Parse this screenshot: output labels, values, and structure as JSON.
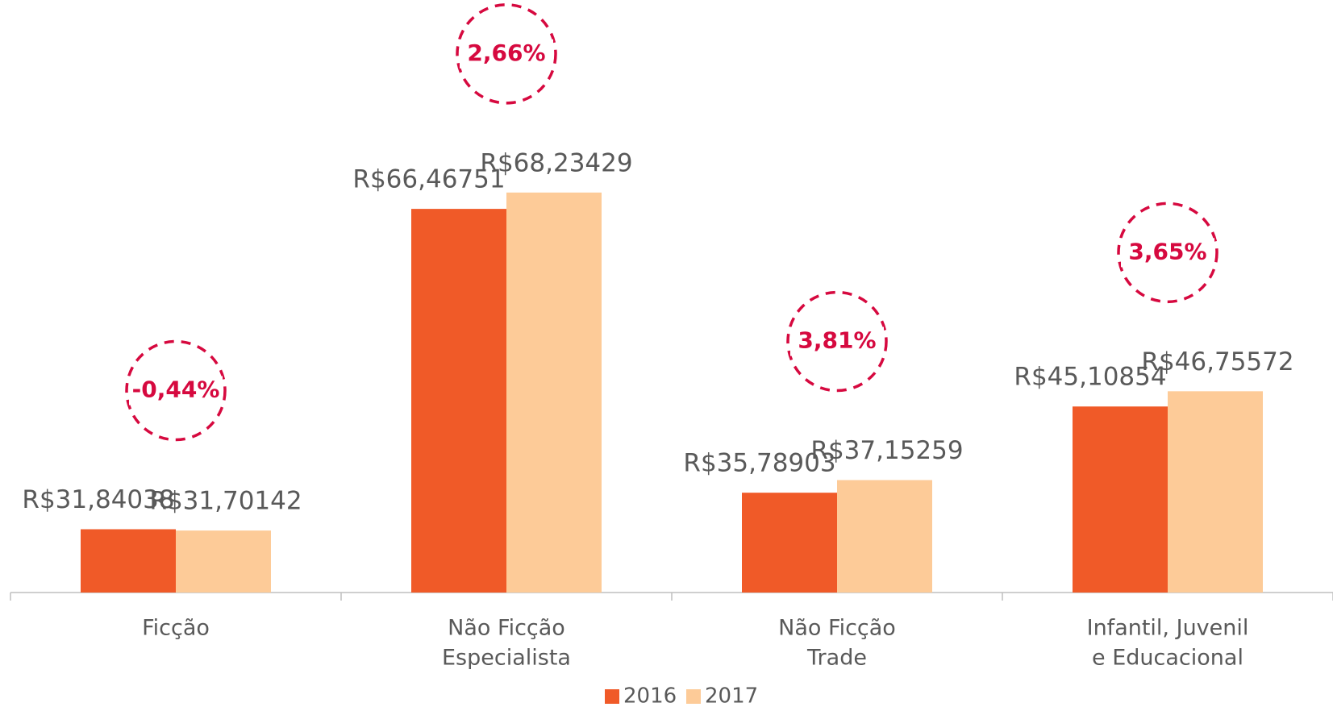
{
  "chart_data": {
    "type": "bar",
    "categories": [
      [
        "Ficção"
      ],
      [
        "Não Ficção",
        "Especialista"
      ],
      [
        "Não Ficção",
        "Trade"
      ],
      [
        "Infantil, Juvenil",
        "e Educacional"
      ]
    ],
    "series": [
      {
        "name": "2016",
        "color": "#f05a28",
        "values": [
          31.84038,
          66.46751,
          35.78903,
          45.10854
        ],
        "value_labels": [
          "R$31,84038",
          "R$66,46751",
          "R$35,78903",
          "R$45,10854"
        ]
      },
      {
        "name": "2017",
        "color": "#fdcb98",
        "values": [
          31.70142,
          68.23429,
          37.15259,
          46.75572
        ],
        "value_labels": [
          "R$31,70142",
          "R$68,23429",
          "R$37,15259",
          "R$46,75572"
        ]
      }
    ],
    "annotations": [
      "-0,44%",
      "2,66%",
      "3,81%",
      "3,65%"
    ],
    "annotation_color": "#d6093f",
    "ylim": [
      25,
      88
    ],
    "legend": "bottom"
  }
}
